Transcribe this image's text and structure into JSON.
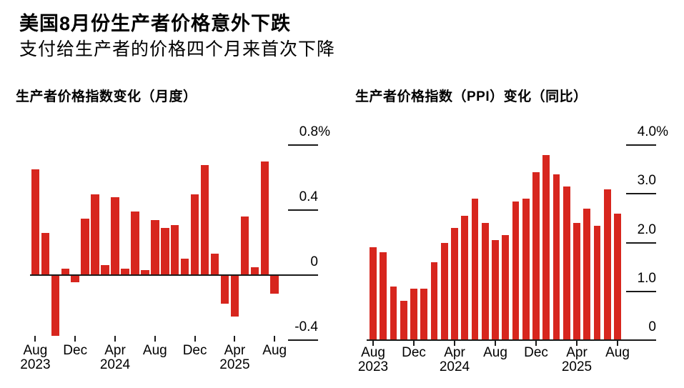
{
  "header": {
    "title": "美国8月份生产者价格意外下跌",
    "subtitle": "支付给生产者的价格四个月来首次下降"
  },
  "colors": {
    "bar": "#d7261e",
    "axis": "#1a1a1a",
    "text": "#000000",
    "background": "#ffffff"
  },
  "chart_data": [
    {
      "type": "bar",
      "title": "生产者价格指数变化（月度）",
      "unit": "%",
      "grid": false,
      "legend": "none",
      "ylim": [
        -0.5,
        0.8
      ],
      "categories": [
        "Aug 2023",
        "Sep 2023",
        "Oct 2023",
        "Nov 2023",
        "Dec 2023",
        "Jan 2024",
        "Feb 2024",
        "Mar 2024",
        "Apr 2024",
        "May 2024",
        "Jun 2024",
        "Jul 2024",
        "Aug 2024",
        "Sep 2024",
        "Oct 2024",
        "Nov 2024",
        "Dec 2024",
        "Jan 2025",
        "Feb 2025",
        "Mar 2025",
        "Apr 2025",
        "May 2025",
        "Jun 2025",
        "Jul 2025",
        "Aug 2025"
      ],
      "values": [
        0.65,
        0.26,
        -0.37,
        0.04,
        -0.04,
        0.35,
        0.5,
        0.06,
        0.48,
        0.04,
        0.39,
        0.03,
        0.34,
        0.29,
        0.31,
        0.1,
        0.5,
        0.68,
        0.13,
        -0.17,
        -0.25,
        0.36,
        0.05,
        0.7,
        -0.11
      ],
      "yticks": [
        {
          "value": 0.8,
          "label": "0.8%"
        },
        {
          "value": 0.4,
          "label": "0.4"
        },
        {
          "value": 0,
          "label": "0"
        },
        {
          "value": -0.4,
          "label": "-0.4"
        }
      ],
      "xticks": [
        {
          "index": 0,
          "month": "Aug",
          "year": "2023"
        },
        {
          "index": 4,
          "month": "Dec",
          "year": ""
        },
        {
          "index": 8,
          "month": "Apr",
          "year": "2024"
        },
        {
          "index": 12,
          "month": "Aug",
          "year": ""
        },
        {
          "index": 16,
          "month": "Dec",
          "year": ""
        },
        {
          "index": 20,
          "month": "Apr",
          "year": "2025"
        },
        {
          "index": 24,
          "month": "Aug",
          "year": ""
        }
      ]
    },
    {
      "type": "bar",
      "title": "生产者价格指数（PPI）变化（同比）",
      "unit": "%",
      "grid": false,
      "legend": "none",
      "ylim": [
        0,
        4.0
      ],
      "categories": [
        "Aug 2023",
        "Sep 2023",
        "Oct 2023",
        "Nov 2023",
        "Dec 2023",
        "Jan 2024",
        "Feb 2024",
        "Mar 2024",
        "Apr 2024",
        "May 2024",
        "Jun 2024",
        "Jul 2024",
        "Aug 2024",
        "Sep 2024",
        "Oct 2024",
        "Nov 2024",
        "Dec 2024",
        "Jan 2025",
        "Feb 2025",
        "Mar 2025",
        "Apr 2025",
        "May 2025",
        "Jun 2025",
        "Jul 2025",
        "Aug 2025"
      ],
      "values": [
        1.9,
        1.8,
        1.1,
        0.8,
        1.05,
        1.05,
        1.6,
        2.0,
        2.3,
        2.55,
        2.9,
        2.4,
        2.05,
        2.15,
        2.85,
        2.9,
        3.45,
        3.8,
        3.4,
        3.15,
        2.4,
        2.7,
        2.35,
        3.1,
        2.6
      ],
      "yticks": [
        {
          "value": 4.0,
          "label": "4.0%"
        },
        {
          "value": 3.0,
          "label": "3.0"
        },
        {
          "value": 2.0,
          "label": "2.0"
        },
        {
          "value": 1.0,
          "label": "1.0"
        },
        {
          "value": 0,
          "label": "0"
        }
      ],
      "xticks": [
        {
          "index": 0,
          "month": "Aug",
          "year": "2023"
        },
        {
          "index": 4,
          "month": "Dec",
          "year": ""
        },
        {
          "index": 8,
          "month": "Apr",
          "year": "2024"
        },
        {
          "index": 12,
          "month": "Aug",
          "year": ""
        },
        {
          "index": 16,
          "month": "Dec",
          "year": ""
        },
        {
          "index": 20,
          "month": "Apr",
          "year": "2025"
        },
        {
          "index": 24,
          "month": "Aug",
          "year": ""
        }
      ]
    }
  ]
}
